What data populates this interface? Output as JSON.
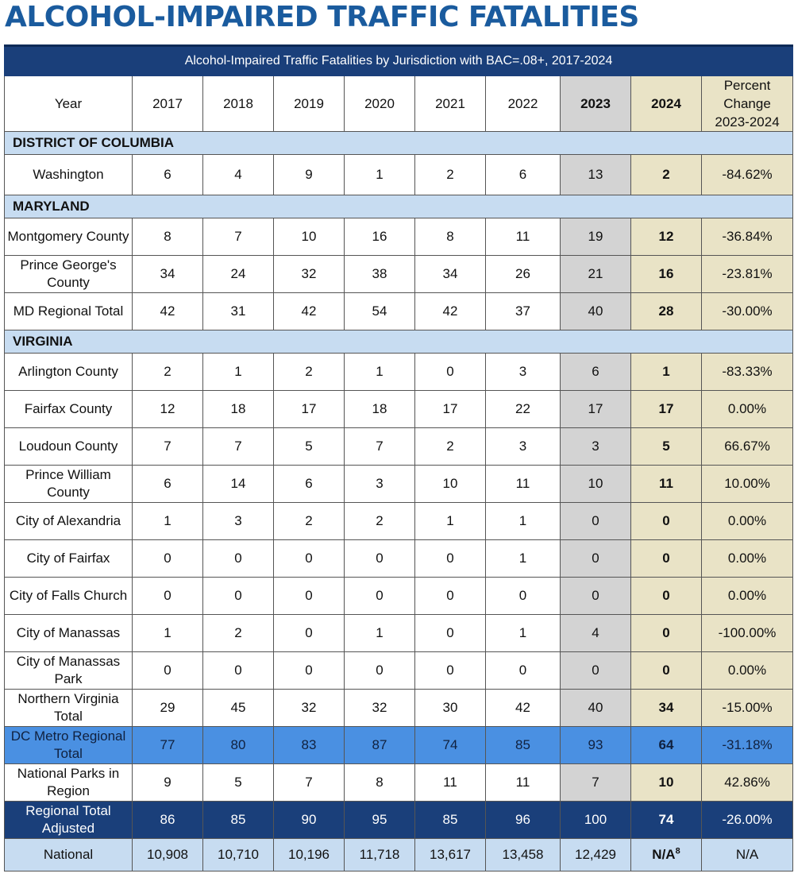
{
  "title": "ALCOHOL-IMPAIRED TRAFFIC FATALITIES",
  "table": {
    "caption": "Alcohol-Impaired Traffic Fatalities by Jurisdiction with BAC=.08+, 2017-2024",
    "header": {
      "label": "Year",
      "years": [
        "2017",
        "2018",
        "2019",
        "2020",
        "2021",
        "2022"
      ],
      "y2023": "2023",
      "y2024": "2024",
      "pct_line1": "Percent",
      "pct_line2": "Change",
      "pct_line3": "2023-2024"
    },
    "sections": [
      {
        "name": "DISTRICT OF COLUMBIA",
        "rows": [
          {
            "name": "Washington",
            "values": [
              "6",
              "4",
              "9",
              "1",
              "2",
              "6"
            ],
            "v2023": "13",
            "v2024": "2",
            "pct": "-84.62%"
          }
        ]
      },
      {
        "name": "MARYLAND",
        "rows": [
          {
            "name": "Montgomery County",
            "values": [
              "8",
              "7",
              "10",
              "16",
              "8",
              "11"
            ],
            "v2023": "19",
            "v2024": "12",
            "pct": "-36.84%"
          },
          {
            "name": "Prince George's County",
            "values": [
              "34",
              "24",
              "32",
              "38",
              "34",
              "26"
            ],
            "v2023": "21",
            "v2024": "16",
            "pct": "-23.81%"
          },
          {
            "name": "MD Regional Total",
            "values": [
              "42",
              "31",
              "42",
              "54",
              "42",
              "37"
            ],
            "v2023": "40",
            "v2024": "28",
            "pct": "-30.00%"
          }
        ]
      },
      {
        "name": "VIRGINIA",
        "rows": [
          {
            "name": "Arlington County",
            "values": [
              "2",
              "1",
              "2",
              "1",
              "0",
              "3"
            ],
            "v2023": "6",
            "v2024": "1",
            "pct": "-83.33%"
          },
          {
            "name": "Fairfax County",
            "values": [
              "12",
              "18",
              "17",
              "18",
              "17",
              "22"
            ],
            "v2023": "17",
            "v2024": "17",
            "pct": "0.00%"
          },
          {
            "name": "Loudoun County",
            "values": [
              "7",
              "7",
              "5",
              "7",
              "2",
              "3"
            ],
            "v2023": "3",
            "v2024": "5",
            "pct": "66.67%"
          },
          {
            "name": "Prince William County",
            "values": [
              "6",
              "14",
              "6",
              "3",
              "10",
              "11"
            ],
            "v2023": "10",
            "v2024": "11",
            "pct": "10.00%"
          },
          {
            "name": "City of Alexandria",
            "values": [
              "1",
              "3",
              "2",
              "2",
              "1",
              "1"
            ],
            "v2023": "0",
            "v2024": "0",
            "pct": "0.00%"
          },
          {
            "name": "City of Fairfax",
            "values": [
              "0",
              "0",
              "0",
              "0",
              "0",
              "1"
            ],
            "v2023": "0",
            "v2024": "0",
            "pct": "0.00%"
          },
          {
            "name": "City of Falls Church",
            "values": [
              "0",
              "0",
              "0",
              "0",
              "0",
              "0"
            ],
            "v2023": "0",
            "v2024": "0",
            "pct": "0.00%"
          },
          {
            "name": "City of Manassas",
            "values": [
              "1",
              "2",
              "0",
              "1",
              "0",
              "1"
            ],
            "v2023": "4",
            "v2024": "0",
            "pct": "-100.00%"
          },
          {
            "name": "City of Manassas Park",
            "values": [
              "0",
              "0",
              "0",
              "0",
              "0",
              "0"
            ],
            "v2023": "0",
            "v2024": "0",
            "pct": "0.00%"
          },
          {
            "name": "Northern Virginia Total",
            "values": [
              "29",
              "45",
              "32",
              "32",
              "30",
              "42"
            ],
            "v2023": "40",
            "v2024": "34",
            "pct": "-15.00%"
          }
        ]
      }
    ],
    "dc_metro": {
      "name": "DC Metro Regional Total",
      "values": [
        "77",
        "80",
        "83",
        "87",
        "74",
        "85"
      ],
      "v2023": "93",
      "v2024": "64",
      "pct": "-31.18%"
    },
    "national_parks": {
      "name": "National Parks in Region",
      "values": [
        "9",
        "5",
        "7",
        "8",
        "11",
        "11"
      ],
      "v2023": "7",
      "v2024": "10",
      "pct": "42.86%"
    },
    "regional_adjusted": {
      "name": "Regional Total Adjusted",
      "values": [
        "86",
        "85",
        "90",
        "95",
        "85",
        "96"
      ],
      "v2023": "100",
      "v2024": "74",
      "pct": "-26.00%"
    },
    "national": {
      "name": "National",
      "values": [
        "10,908",
        "10,710",
        "10,196",
        "11,718",
        "13,617",
        "13,458"
      ],
      "v2023": "12,429",
      "v2024": "N/A",
      "v2024_footnote": "8",
      "pct": "N/A"
    }
  }
}
